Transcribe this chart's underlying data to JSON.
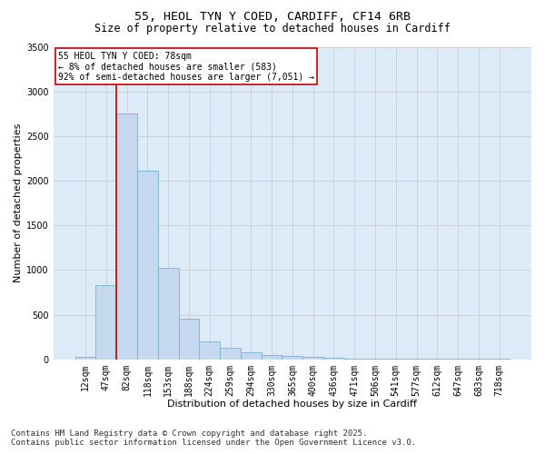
{
  "title_line1": "55, HEOL TYN Y COED, CARDIFF, CF14 6RB",
  "title_line2": "Size of property relative to detached houses in Cardiff",
  "xlabel": "Distribution of detached houses by size in Cardiff",
  "ylabel": "Number of detached properties",
  "categories": [
    "12sqm",
    "47sqm",
    "82sqm",
    "118sqm",
    "153sqm",
    "188sqm",
    "224sqm",
    "259sqm",
    "294sqm",
    "330sqm",
    "365sqm",
    "400sqm",
    "436sqm",
    "471sqm",
    "506sqm",
    "541sqm",
    "577sqm",
    "612sqm",
    "647sqm",
    "683sqm",
    "718sqm"
  ],
  "values": [
    30,
    830,
    2750,
    2110,
    1020,
    450,
    200,
    130,
    80,
    50,
    35,
    25,
    15,
    10,
    7,
    5,
    4,
    3,
    3,
    3,
    3
  ],
  "bar_color": "#c5d9ee",
  "bar_edge_color": "#7aafd4",
  "bar_linewidth": 0.6,
  "vline_color": "#cc0000",
  "vline_pos": 1.5,
  "annotation_text": "55 HEOL TYN Y COED: 78sqm\n← 8% of detached houses are smaller (583)\n92% of semi-detached houses are larger (7,051) →",
  "annotation_box_facecolor": "#ffffff",
  "annotation_box_edgecolor": "#cc0000",
  "ylim": [
    0,
    3500
  ],
  "yticks": [
    0,
    500,
    1000,
    1500,
    2000,
    2500,
    3000,
    3500
  ],
  "grid_color": "#cccccc",
  "bg_color": "#ddeaf7",
  "footnote": "Contains HM Land Registry data © Crown copyright and database right 2025.\nContains public sector information licensed under the Open Government Licence v3.0.",
  "title_fontsize": 9.5,
  "subtitle_fontsize": 8.5,
  "axis_label_fontsize": 8,
  "tick_fontsize": 7,
  "annotation_fontsize": 7,
  "footnote_fontsize": 6.5
}
